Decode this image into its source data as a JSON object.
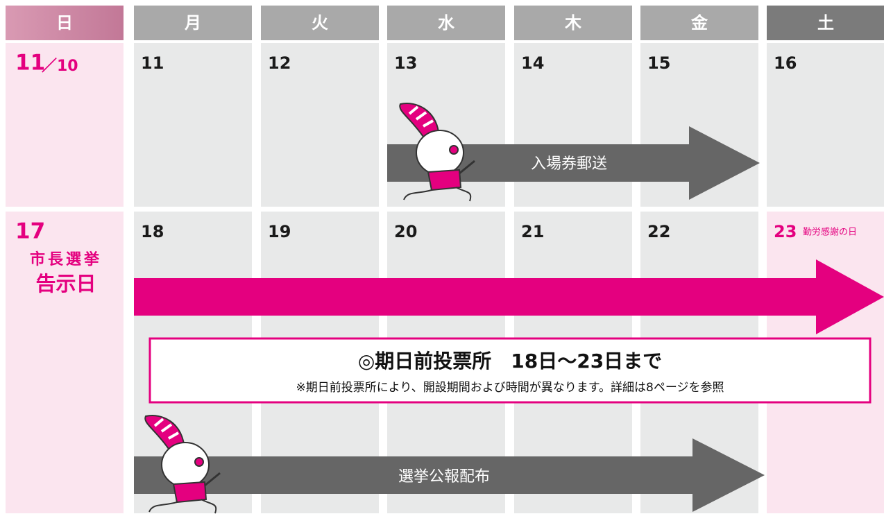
{
  "header": {
    "days": [
      "日",
      "月",
      "火",
      "水",
      "木",
      "金",
      "土"
    ]
  },
  "weeks": [
    {
      "days": [
        {
          "date": "11",
          "sub": "／10"
        },
        {
          "date": "11"
        },
        {
          "date": "12"
        },
        {
          "date": "13"
        },
        {
          "date": "14"
        },
        {
          "date": "15"
        },
        {
          "date": "16"
        }
      ]
    },
    {
      "days": [
        {
          "date": "17",
          "notes": [
            "市長選挙",
            "告示日"
          ]
        },
        {
          "date": "18"
        },
        {
          "date": "19"
        },
        {
          "date": "20"
        },
        {
          "date": "21"
        },
        {
          "date": "22"
        },
        {
          "date": "23",
          "note": "勤労感謝の日"
        }
      ]
    }
  ],
  "events": [
    {
      "label": "入場券郵送"
    },
    {
      "label": "選挙公報配布"
    }
  ],
  "notice": {
    "title": "◎期日前投票所　18日～23日まで",
    "detail": "※期日前投票所により、開設期間および時間が異なります。詳細は8ページを参照"
  }
}
